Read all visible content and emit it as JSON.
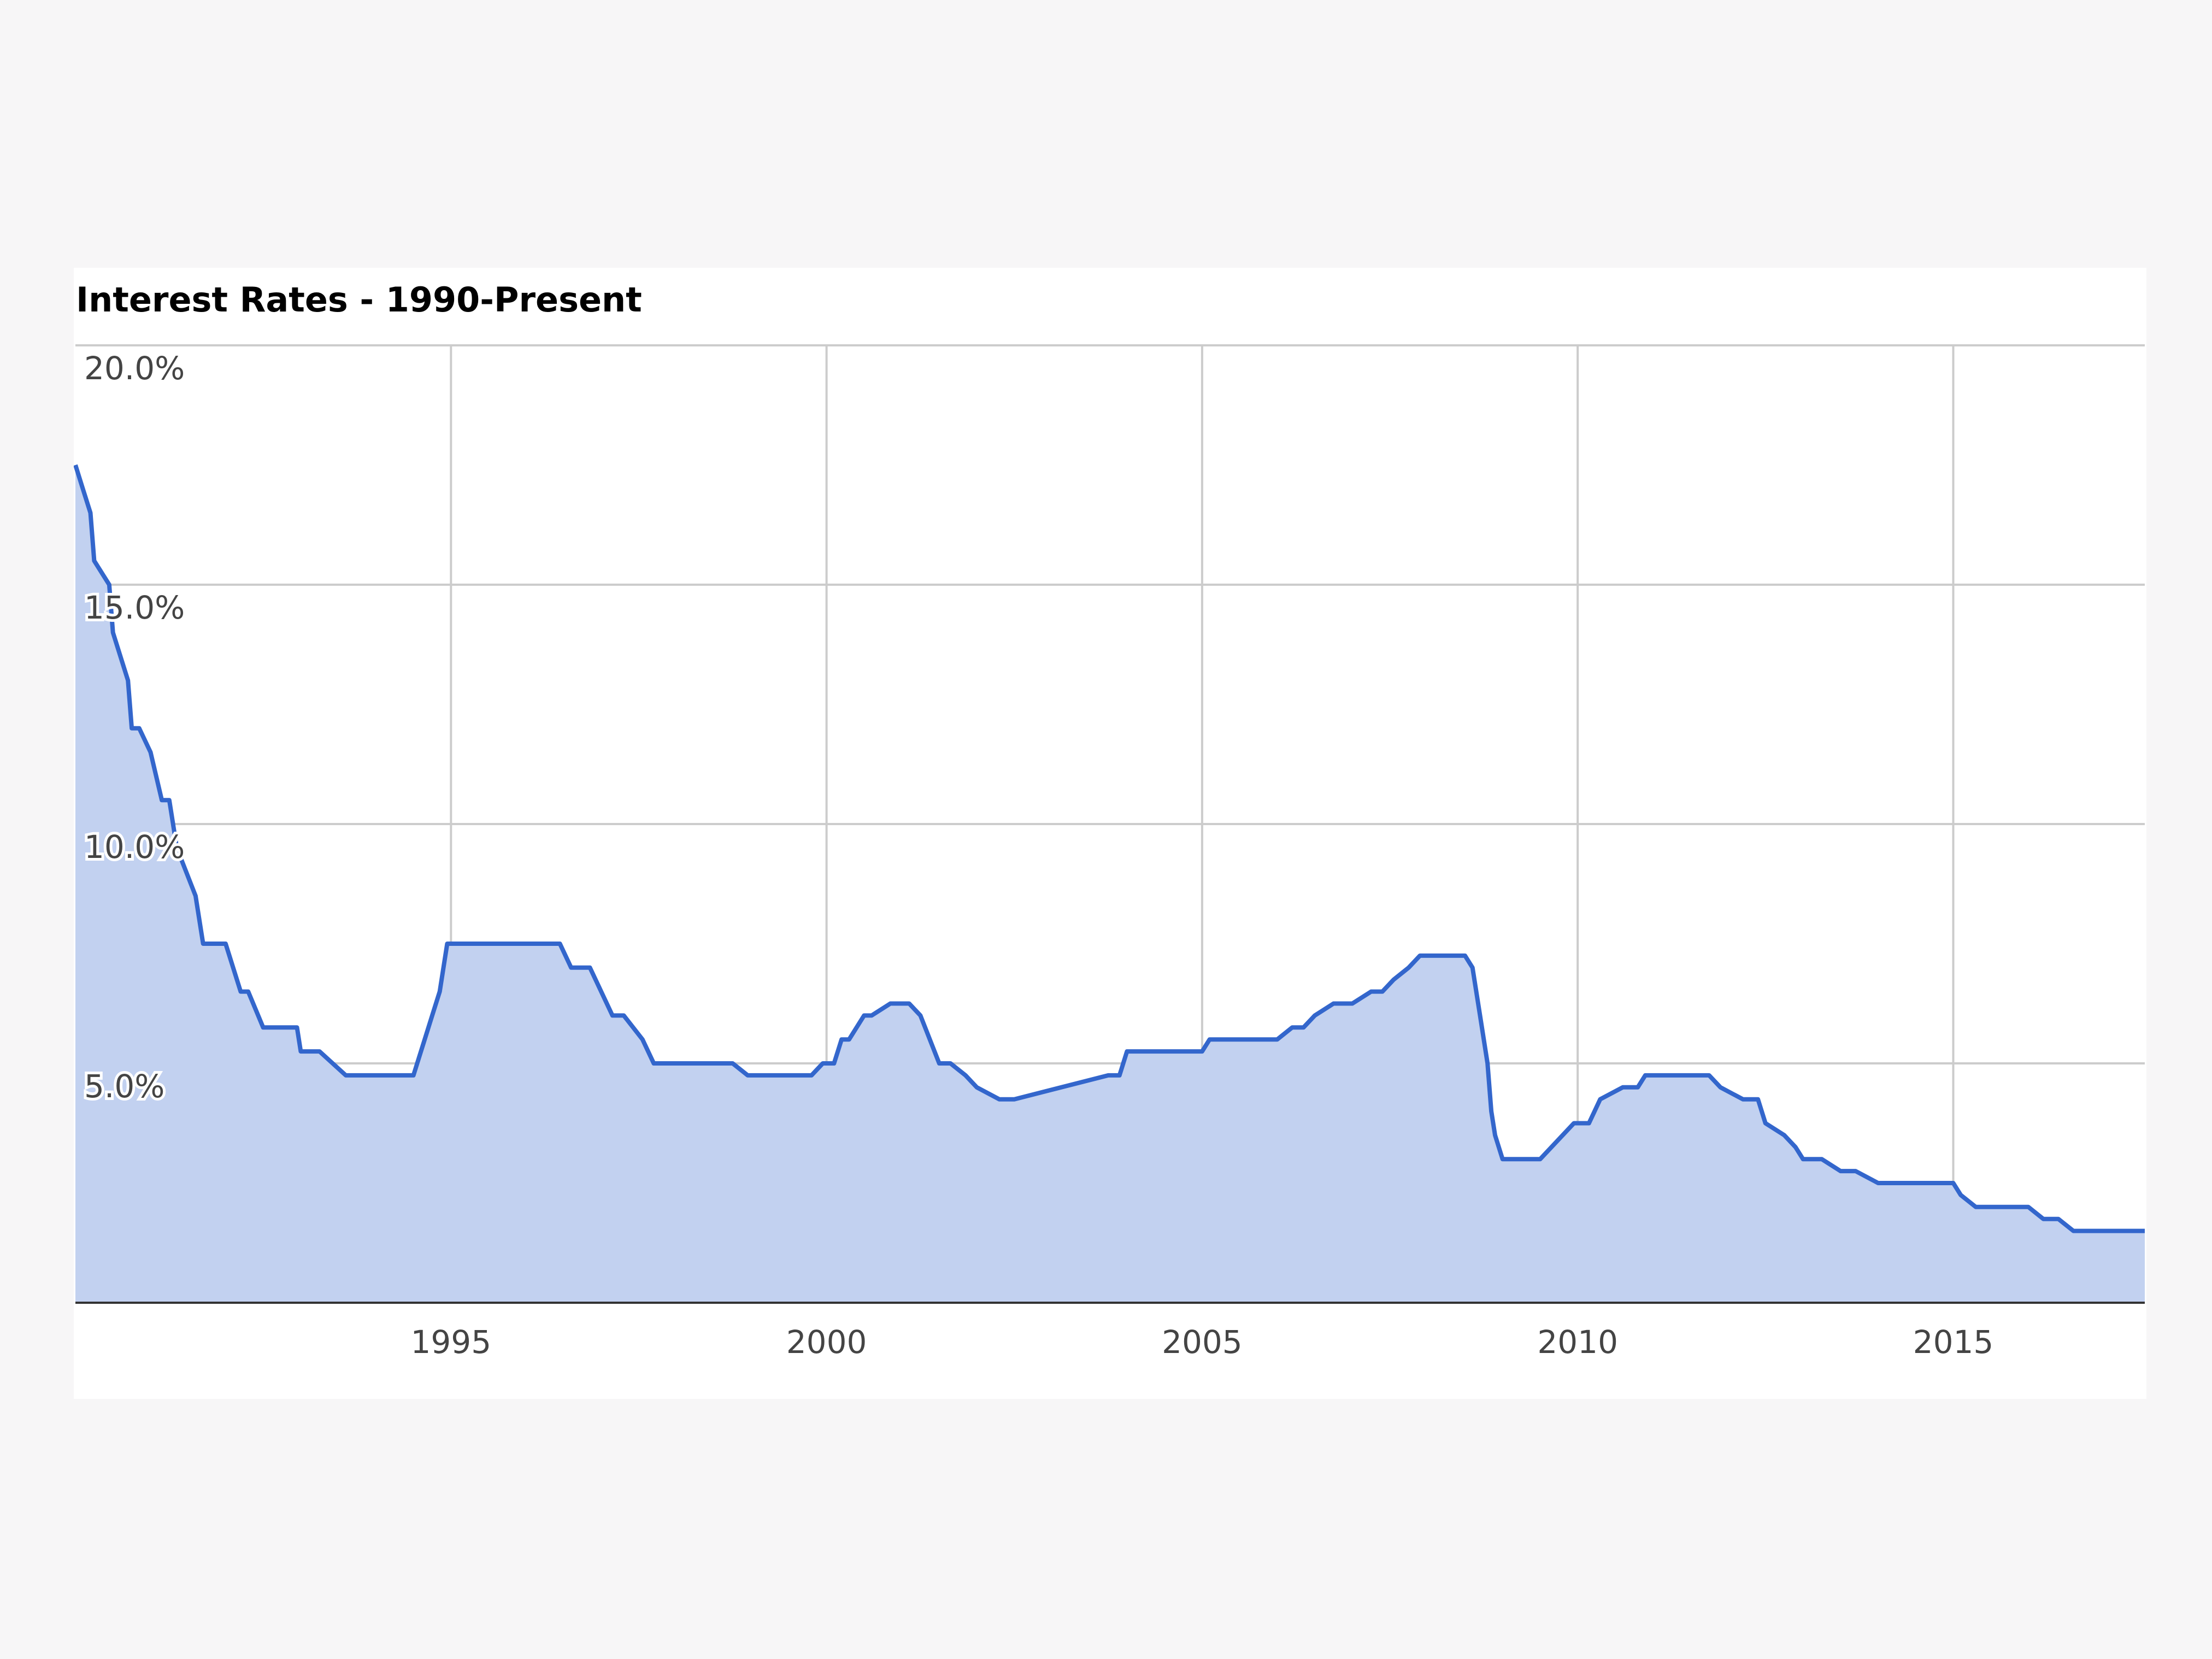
{
  "chart_data": {
    "type": "area",
    "title": "Interest Rates - 1990-Present",
    "xlabel": "",
    "ylabel": "",
    "xlim": [
      1990,
      2017.55
    ],
    "ylim": [
      0,
      20
    ],
    "y_ticks": [
      {
        "value": 20,
        "label": "20.0%"
      },
      {
        "value": 15,
        "label": "15.0%"
      },
      {
        "value": 10,
        "label": "10.0%"
      },
      {
        "value": 5,
        "label": "5.0%"
      }
    ],
    "x_ticks": [
      {
        "value": 1995,
        "label": "1995"
      },
      {
        "value": 2000,
        "label": "2000"
      },
      {
        "value": 2005,
        "label": "2005"
      },
      {
        "value": 2010,
        "label": "2010"
      },
      {
        "value": 2015,
        "label": "2015"
      }
    ],
    "grid": true,
    "legend": "none",
    "colors": {
      "line": "#3366cc",
      "fill": "#c2d1f0",
      "grid": "#cccccc",
      "baseline": "#333333"
    },
    "series": [
      {
        "x": [
          1990.0,
          1990.1,
          1990.2,
          1990.25,
          1990.45,
          1990.5,
          1990.7,
          1990.75,
          1990.85,
          1991.0,
          1991.15,
          1991.25,
          1991.35,
          1991.6,
          1991.7,
          1991.95,
          1992.0,
          1992.2,
          1992.3,
          1992.5,
          1992.6,
          1992.85,
          1992.95,
          1993.0,
          1993.15,
          1993.25,
          1993.6,
          1993.7,
          1994.5,
          1994.65,
          1994.75,
          1994.85,
          1994.95,
          1995.5,
          1996.45,
          1996.6,
          1996.85,
          1997.15,
          1997.3,
          1997.55,
          1997.7,
          1997.8,
          1998.75,
          1998.95,
          1999.8,
          1999.95,
          2000.1,
          2000.2,
          2000.3,
          2000.5,
          2000.6,
          2000.85,
          2001.0,
          2001.1,
          2001.25,
          2001.5,
          2001.65,
          2001.85,
          2002.0,
          2002.3,
          2002.5,
          2003.75,
          2003.9,
          2004.0,
          2004.5,
          2005.0,
          2005.1,
          2005.5,
          2006.0,
          2006.2,
          2006.35,
          2006.5,
          2006.75,
          2007.0,
          2007.25,
          2007.4,
          2007.55,
          2007.75,
          2007.9,
          2008.0,
          2008.5,
          2008.6,
          2008.7,
          2008.8,
          2008.85,
          2008.9,
          2009.0,
          2009.05,
          2009.1,
          2009.3,
          2009.5,
          2009.95,
          2010.15,
          2010.3,
          2010.6,
          2010.8,
          2010.9,
          2011.5,
          2011.75,
          2011.9,
          2012.2,
          2012.4,
          2012.5,
          2012.75,
          2012.9,
          2013.0,
          2013.25,
          2013.5,
          2013.7,
          2014.0,
          2014.5,
          2015.0,
          2015.1,
          2015.3,
          2015.5,
          2016.0,
          2016.2,
          2016.4,
          2016.6,
          2017.0,
          2017.55
        ],
        "y": [
          17.5,
          17.0,
          16.5,
          15.5,
          15.0,
          14.0,
          13.0,
          12.0,
          12.0,
          11.5,
          10.5,
          10.5,
          9.5,
          8.5,
          7.5,
          7.5,
          7.5,
          6.5,
          6.5,
          5.75,
          5.75,
          5.75,
          5.75,
          5.25,
          5.25,
          5.25,
          4.75,
          4.75,
          4.75,
          5.5,
          6.0,
          6.5,
          7.5,
          7.5,
          7.5,
          7.0,
          7.0,
          6.0,
          6.0,
          5.5,
          5.0,
          5.0,
          5.0,
          4.75,
          4.75,
          5.0,
          5.0,
          5.5,
          5.5,
          6.0,
          6.0,
          6.25,
          6.25,
          6.25,
          6.0,
          5.0,
          5.0,
          4.75,
          4.5,
          4.25,
          4.25,
          4.75,
          4.75,
          5.25,
          5.25,
          5.25,
          5.5,
          5.5,
          5.5,
          5.75,
          5.75,
          6.0,
          6.25,
          6.25,
          6.5,
          6.5,
          6.75,
          7.0,
          7.25,
          7.25,
          7.25,
          7.0,
          6.0,
          5.0,
          4.0,
          3.5,
          3.0,
          3.0,
          3.0,
          3.0,
          3.0,
          3.75,
          3.75,
          4.25,
          4.5,
          4.5,
          4.75,
          4.75,
          4.75,
          4.5,
          4.25,
          4.25,
          3.75,
          3.5,
          3.25,
          3.0,
          3.0,
          2.75,
          2.75,
          2.5,
          2.5,
          2.5,
          2.25,
          2.0,
          2.0,
          2.0,
          1.75,
          1.75,
          1.5,
          1.5,
          1.5
        ]
      }
    ]
  }
}
